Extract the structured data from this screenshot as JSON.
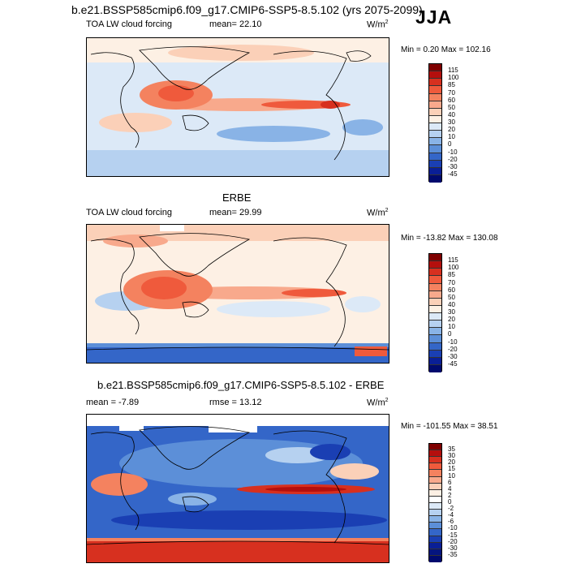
{
  "header": {
    "title": "b.e21.BSSP585cmip6.f09_g17.CMIP6-SSP5-8.5.102 (yrs 2075-2099)",
    "season": "JJA"
  },
  "panels": [
    {
      "name": "model",
      "title": "",
      "left_label": "TOA LW cloud forcing",
      "center_label": "mean=  22.10",
      "units": "W/m",
      "units_sup": "2",
      "min_max": "Min =   0.20 Max = 102.16",
      "colorbar": {
        "ticks": [
          "115",
          "100",
          "85",
          "70",
          "60",
          "50",
          "40",
          "30",
          "20",
          "10",
          "0",
          "-10",
          "-20",
          "-30",
          "-45"
        ],
        "colors": [
          "#7f0000",
          "#b40f0d",
          "#d7301f",
          "#ef5a3c",
          "#f4825f",
          "#f8a98c",
          "#fbd0b8",
          "#fdf0e4",
          "#dce9f7",
          "#b6d1f0",
          "#89b3e6",
          "#5c8fd8",
          "#3466c8",
          "#1a3fb3",
          "#0a1f96",
          "#000a6e"
        ]
      }
    },
    {
      "name": "obs",
      "title": "ERBE",
      "left_label": "TOA LW cloud forcing",
      "center_label": "mean=  29.99",
      "units": "W/m",
      "units_sup": "2",
      "min_max": "Min = -13.82 Max = 130.08",
      "colorbar": {
        "ticks": [
          "115",
          "100",
          "85",
          "70",
          "60",
          "50",
          "40",
          "30",
          "20",
          "10",
          "0",
          "-10",
          "-20",
          "-30",
          "-45"
        ],
        "colors": [
          "#7f0000",
          "#b40f0d",
          "#d7301f",
          "#ef5a3c",
          "#f4825f",
          "#f8a98c",
          "#fbd0b8",
          "#fdf0e4",
          "#dce9f7",
          "#b6d1f0",
          "#89b3e6",
          "#5c8fd8",
          "#3466c8",
          "#1a3fb3",
          "#0a1f96",
          "#000a6e"
        ]
      }
    },
    {
      "name": "diff",
      "title": "b.e21.BSSP585cmip6.f09_g17.CMIP6-SSP5-8.5.102 - ERBE",
      "left_label": "mean =  -7.89",
      "center_label": "rmse =  13.12",
      "units": "W/m",
      "units_sup": "2",
      "min_max": "Min = -101.55 Max =  38.51",
      "colorbar": {
        "ticks": [
          "35",
          "30",
          "20",
          "15",
          "10",
          "6",
          "4",
          "2",
          "0",
          "-2",
          "-4",
          "-6",
          "-10",
          "-15",
          "-20",
          "-30",
          "-35"
        ],
        "colors": [
          "#7f0000",
          "#b40f0d",
          "#d7301f",
          "#ef5a3c",
          "#f4825f",
          "#f8a98c",
          "#fbd0b8",
          "#fdf0e4",
          "#ffffff",
          "#dce9f7",
          "#b6d1f0",
          "#89b3e6",
          "#5c8fd8",
          "#3466c8",
          "#1a3fb3",
          "#0a1f96",
          "#05157f",
          "#000a6e"
        ]
      }
    }
  ],
  "chart_data": [
    {
      "type": "heatmap",
      "title": "TOA LW cloud forcing",
      "units": "W/m2",
      "mean": 22.1,
      "min": 0.2,
      "max": 102.16,
      "contour_levels": [
        -45,
        -30,
        -20,
        -10,
        0,
        10,
        20,
        30,
        40,
        50,
        60,
        70,
        85,
        100,
        115
      ],
      "xlim": [
        0,
        360
      ],
      "ylim": [
        -90,
        90
      ],
      "grid": false
    },
    {
      "type": "heatmap",
      "title": "TOA LW cloud forcing",
      "units": "W/m2",
      "mean": 29.99,
      "min": -13.82,
      "max": 130.08,
      "contour_levels": [
        -45,
        -30,
        -20,
        -10,
        0,
        10,
        20,
        30,
        40,
        50,
        60,
        70,
        85,
        100,
        115
      ],
      "xlim": [
        0,
        360
      ],
      "ylim": [
        -90,
        90
      ],
      "grid": false
    },
    {
      "type": "heatmap",
      "title": "b.e21.BSSP585cmip6.f09_g17.CMIP6-SSP5-8.5.102 - ERBE",
      "units": "W/m2",
      "mean": -7.89,
      "rmse": 13.12,
      "min": -101.55,
      "max": 38.51,
      "contour_levels": [
        -35,
        -30,
        -20,
        -15,
        -10,
        -6,
        -4,
        -2,
        0,
        2,
        4,
        6,
        10,
        15,
        20,
        30,
        35
      ],
      "xlim": [
        0,
        360
      ],
      "ylim": [
        -90,
        90
      ],
      "grid": false
    }
  ]
}
